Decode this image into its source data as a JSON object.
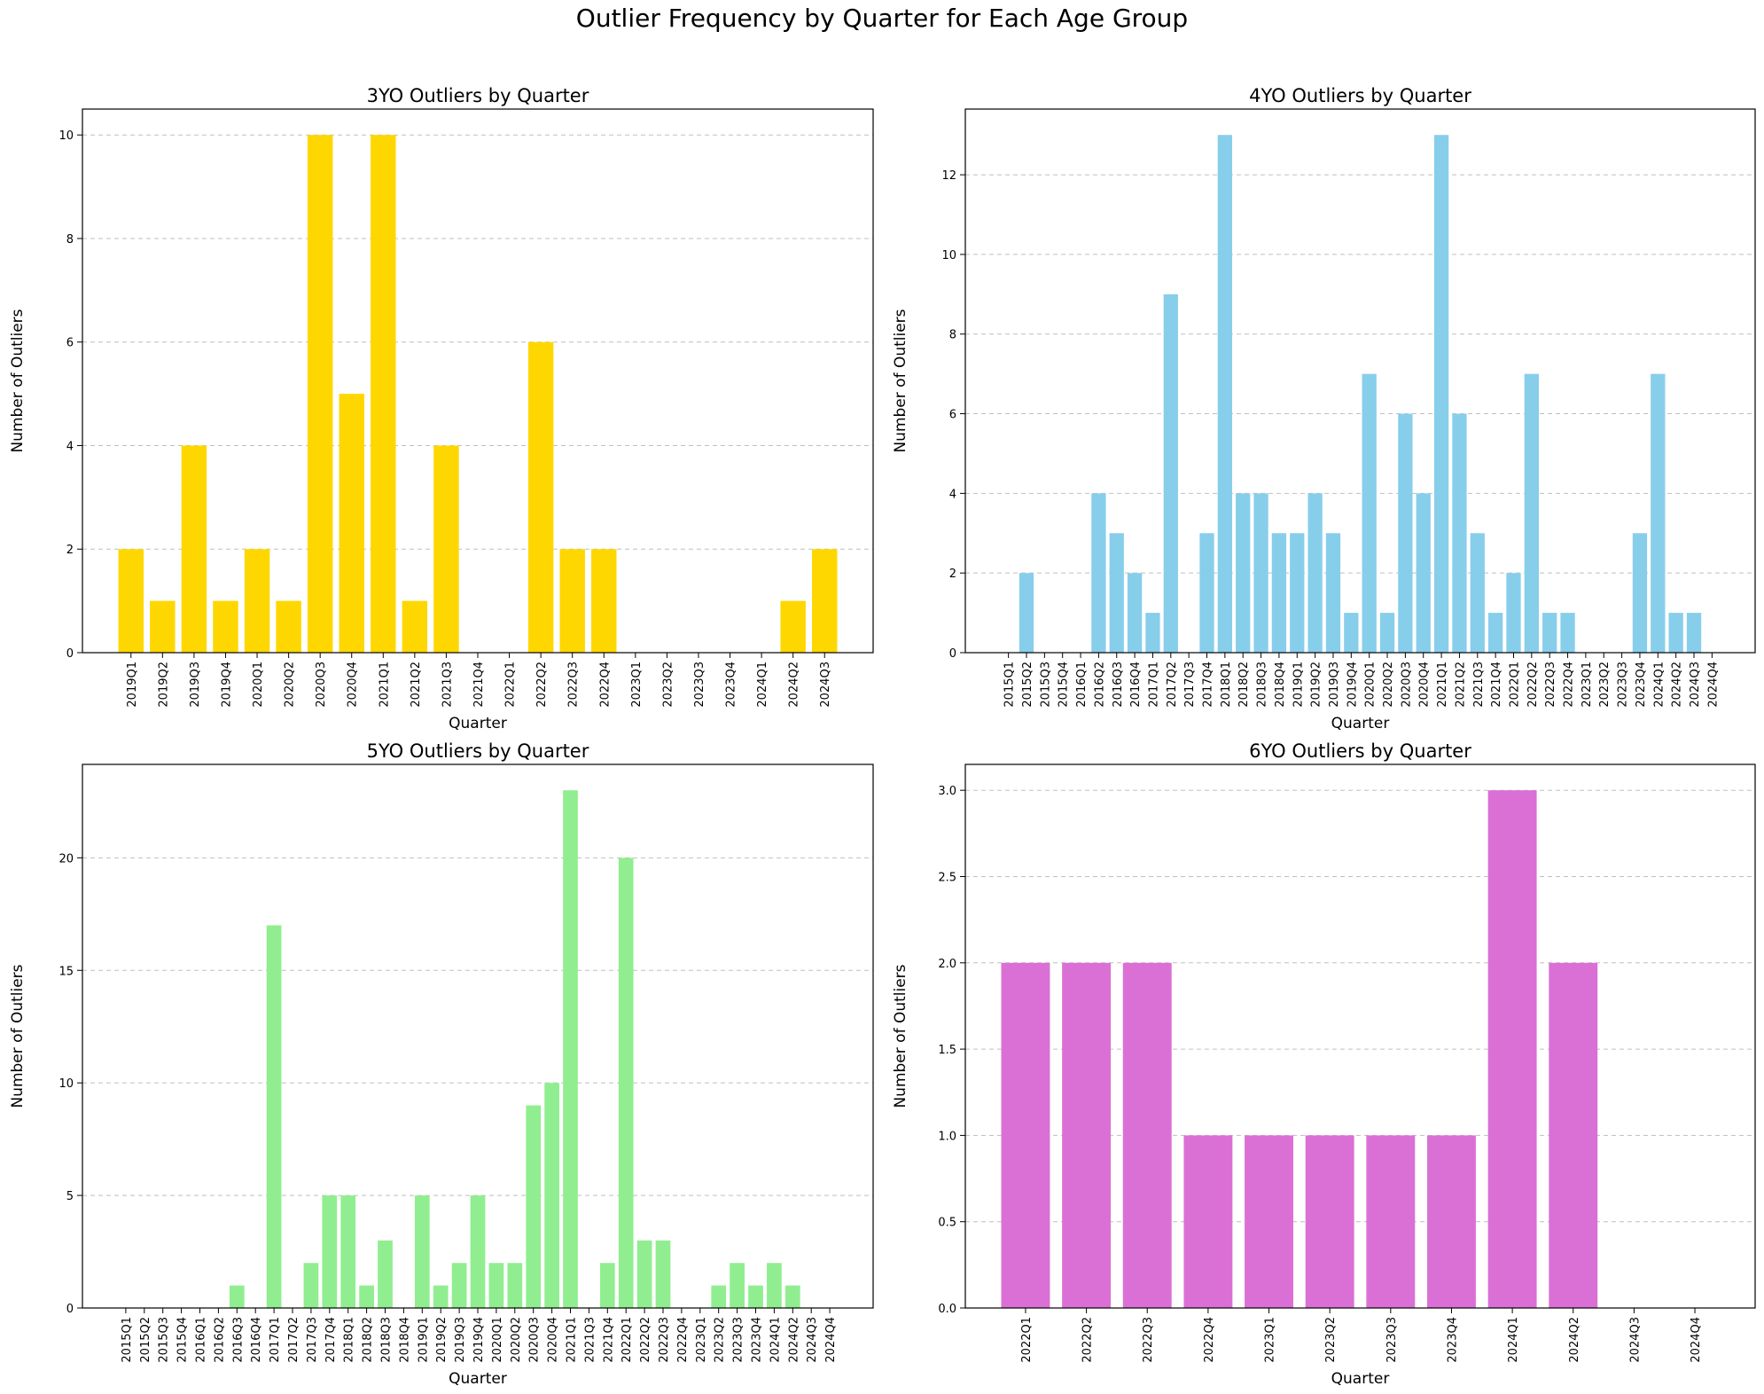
{
  "suptitle": "Outlier Frequency by Quarter for Each Age Group",
  "chart_data": [
    {
      "type": "bar",
      "title": "3YO Outliers by Quarter",
      "xlabel": "Quarter",
      "ylabel": "Number of Outliers",
      "color": "#FFD700",
      "ylim": [
        0,
        10.5
      ],
      "yticks": [
        0,
        2,
        4,
        6,
        8,
        10
      ],
      "ytick_labels": [
        "0",
        "2",
        "4",
        "6",
        "8",
        "10"
      ],
      "grid": "y-dashed",
      "categories": [
        "2019Q1",
        "2019Q2",
        "2019Q3",
        "2019Q4",
        "2020Q1",
        "2020Q2",
        "2020Q3",
        "2020Q4",
        "2021Q1",
        "2021Q2",
        "2021Q3",
        "2021Q4",
        "2022Q1",
        "2022Q2",
        "2022Q3",
        "2022Q4",
        "2023Q1",
        "2023Q2",
        "2023Q3",
        "2023Q4",
        "2024Q1",
        "2024Q2",
        "2024Q3"
      ],
      "values": [
        2,
        1,
        4,
        1,
        2,
        1,
        10,
        5,
        10,
        1,
        4,
        0,
        0,
        6,
        2,
        2,
        0,
        0,
        0,
        0,
        0,
        1,
        2
      ]
    },
    {
      "type": "bar",
      "title": "4YO Outliers by Quarter",
      "xlabel": "Quarter",
      "ylabel": "Number of Outliers",
      "color": "#87CEEB",
      "ylim": [
        0,
        13.65
      ],
      "yticks": [
        0,
        2,
        4,
        6,
        8,
        10,
        12
      ],
      "ytick_labels": [
        "0",
        "2",
        "4",
        "6",
        "8",
        "10",
        "12"
      ],
      "grid": "y-dashed",
      "categories": [
        "2015Q1",
        "2015Q2",
        "2015Q3",
        "2015Q4",
        "2016Q1",
        "2016Q2",
        "2016Q3",
        "2016Q4",
        "2017Q1",
        "2017Q2",
        "2017Q3",
        "2017Q4",
        "2018Q1",
        "2018Q2",
        "2018Q3",
        "2018Q4",
        "2019Q1",
        "2019Q2",
        "2019Q3",
        "2019Q4",
        "2020Q1",
        "2020Q2",
        "2020Q3",
        "2020Q4",
        "2021Q1",
        "2021Q2",
        "2021Q3",
        "2021Q4",
        "2022Q1",
        "2022Q2",
        "2022Q3",
        "2022Q4",
        "2023Q1",
        "2023Q2",
        "2023Q3",
        "2023Q4",
        "2024Q1",
        "2024Q2",
        "2024Q3",
        "2024Q4"
      ],
      "values": [
        0,
        2,
        0,
        0,
        0,
        4,
        3,
        2,
        1,
        9,
        0,
        3,
        13,
        4,
        4,
        3,
        3,
        4,
        3,
        1,
        7,
        1,
        6,
        4,
        13,
        6,
        3,
        1,
        2,
        7,
        1,
        1,
        0,
        0,
        0,
        3,
        7,
        1,
        1,
        0
      ]
    },
    {
      "type": "bar",
      "title": "5YO Outliers by Quarter",
      "xlabel": "Quarter",
      "ylabel": "Number of Outliers",
      "color": "#90EE90",
      "ylim": [
        0,
        24.15
      ],
      "yticks": [
        0,
        5,
        10,
        15,
        20
      ],
      "ytick_labels": [
        "0",
        "5",
        "10",
        "15",
        "20"
      ],
      "grid": "y-dashed",
      "categories": [
        "2015Q1",
        "2015Q2",
        "2015Q3",
        "2015Q4",
        "2016Q1",
        "2016Q2",
        "2016Q3",
        "2016Q4",
        "2017Q1",
        "2017Q2",
        "2017Q3",
        "2017Q4",
        "2018Q1",
        "2018Q2",
        "2018Q3",
        "2018Q4",
        "2019Q1",
        "2019Q2",
        "2019Q3",
        "2019Q4",
        "2020Q1",
        "2020Q2",
        "2020Q3",
        "2020Q4",
        "2021Q1",
        "2021Q3",
        "2021Q4",
        "2022Q1",
        "2022Q2",
        "2022Q3",
        "2022Q4",
        "2023Q1",
        "2023Q2",
        "2023Q3",
        "2023Q4",
        "2024Q1",
        "2024Q2",
        "2024Q3",
        "2024Q4"
      ],
      "values": [
        0,
        0,
        0,
        0,
        0,
        0,
        1,
        0,
        17,
        0,
        2,
        5,
        5,
        1,
        3,
        0,
        5,
        1,
        2,
        5,
        2,
        2,
        9,
        10,
        23,
        0,
        2,
        20,
        3,
        3,
        0,
        0,
        1,
        2,
        1,
        2,
        1,
        0,
        0
      ]
    },
    {
      "type": "bar",
      "title": "6YO Outliers by Quarter",
      "xlabel": "Quarter",
      "ylabel": "Number of Outliers",
      "color": "#DA70D6",
      "ylim": [
        0,
        3.15
      ],
      "yticks": [
        0,
        0.5,
        1.0,
        1.5,
        2.0,
        2.5,
        3.0
      ],
      "ytick_labels": [
        "0.0",
        "0.5",
        "1.0",
        "1.5",
        "2.0",
        "2.5",
        "3.0"
      ],
      "grid": "y-dashed",
      "categories": [
        "2022Q1",
        "2022Q2",
        "2022Q3",
        "2022Q4",
        "2023Q1",
        "2023Q2",
        "2023Q3",
        "2023Q4",
        "2024Q1",
        "2024Q2",
        "2024Q3",
        "2024Q4"
      ],
      "values": [
        2,
        2,
        2,
        1,
        1,
        1,
        1,
        1,
        3,
        2,
        0,
        0
      ]
    }
  ]
}
